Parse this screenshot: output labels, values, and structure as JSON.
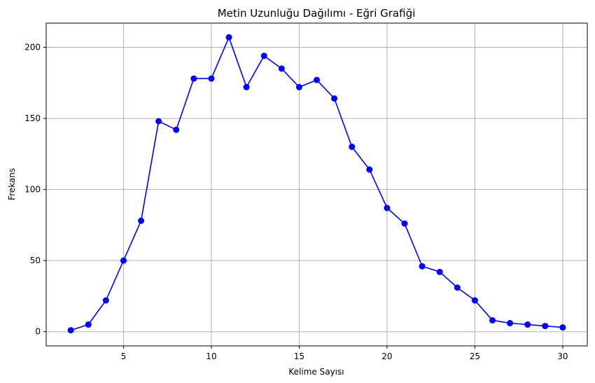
{
  "chart_data": {
    "type": "line",
    "title": "Metin Uzunluğu Dağılımı - Eğri Grafiği",
    "xlabel": "Kelime Sayısı",
    "ylabel": "Frekans",
    "xlim": [
      0.6,
      31.4
    ],
    "ylim": [
      -10,
      217
    ],
    "xticks": [
      5,
      10,
      15,
      20,
      25,
      30
    ],
    "yticks": [
      0,
      50,
      100,
      150,
      200
    ],
    "grid": true,
    "series": [
      {
        "color": "#0000ff",
        "marker": "circle",
        "x": [
          2,
          3,
          4,
          5,
          6,
          7,
          8,
          9,
          10,
          11,
          12,
          13,
          14,
          15,
          16,
          17,
          18,
          19,
          20,
          21,
          22,
          23,
          24,
          25,
          26,
          27,
          28,
          29,
          30
        ],
        "y": [
          1,
          5,
          22,
          50,
          78,
          148,
          142,
          178,
          178,
          207,
          172,
          194,
          185,
          172,
          177,
          164,
          130,
          114,
          87,
          76,
          46,
          42,
          31,
          22,
          8,
          6,
          5,
          4,
          3
        ]
      }
    ]
  }
}
